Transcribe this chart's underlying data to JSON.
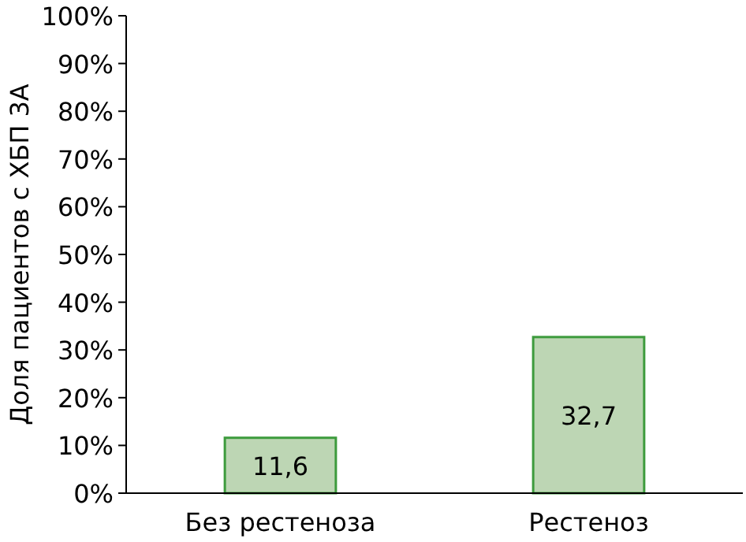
{
  "chart_data": {
    "type": "bar",
    "ylabel": "Доля пациентов с ХБП 3А",
    "categories": [
      "Без рестеноза",
      "Рестеноз"
    ],
    "values": [
      11.6,
      32.7
    ],
    "value_labels": [
      "11,6",
      "32,7"
    ],
    "color": "#bdd6b4",
    "ylim": [
      0,
      100
    ],
    "yticks": [
      {
        "value": 0,
        "label": "0%"
      },
      {
        "value": 10,
        "label": "10%"
      },
      {
        "value": 20,
        "label": "20%"
      },
      {
        "value": 30,
        "label": "30%"
      },
      {
        "value": 40,
        "label": "40%"
      },
      {
        "value": 50,
        "label": "50%"
      },
      {
        "value": 60,
        "label": "60%"
      },
      {
        "value": 70,
        "label": "70%"
      },
      {
        "value": 80,
        "label": "80%"
      },
      {
        "value": 90,
        "label": "90%"
      },
      {
        "value": 100,
        "label": "100%"
      }
    ],
    "grid": false
  }
}
